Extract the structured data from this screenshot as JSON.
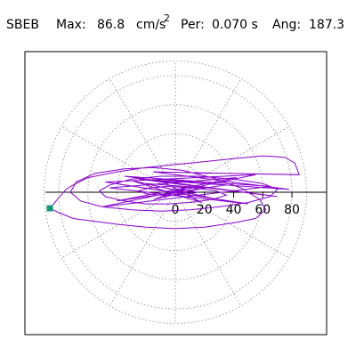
{
  "header": {
    "station": "SBEB",
    "max_label": "Max:",
    "max_value": "86.8",
    "max_unit": "cm/s",
    "max_exponent": "2",
    "per_label": "Per:",
    "per_value": "0.070 s",
    "ang_label": "Ang:",
    "ang_value": "187.3"
  },
  "chart_data": {
    "type": "line",
    "projection": "polar-hodogram",
    "title": "",
    "xlabel": "",
    "ylabel": "",
    "radial_range": [
      0,
      90
    ],
    "rings": [
      20,
      40,
      60,
      80,
      90
    ],
    "spokes_every_deg": 30,
    "radial_tick_labels": [
      "0",
      "20",
      "40",
      "60",
      "80"
    ],
    "grid": true,
    "colors": {
      "trace": "#8800cc",
      "marker": "#119977",
      "grid": "#888888",
      "axis": "#000000"
    },
    "max_point": {
      "x": -86.1,
      "y": -11.0
    },
    "series": [
      {
        "x": [
          0,
          5,
          -8,
          10,
          -15,
          20,
          -20,
          25,
          -30,
          18,
          -12,
          35,
          -40,
          42,
          -45,
          50,
          -48,
          55,
          -50,
          65,
          -35,
          70,
          -25,
          78,
          -15,
          85,
          82,
          75,
          60,
          40,
          20,
          0,
          -20,
          -40,
          -60,
          -70,
          -75,
          -86.1,
          -80,
          -70,
          -55,
          -40,
          -20,
          0,
          20,
          40,
          55,
          62,
          58,
          45,
          25,
          5,
          -15,
          -35,
          -55,
          -68,
          -72,
          -65,
          -50,
          -30,
          -10,
          10,
          30,
          50,
          65,
          70,
          60,
          40,
          15,
          -10,
          -30,
          -45,
          -52,
          -48,
          -35,
          -20,
          -5,
          10,
          25,
          35,
          28,
          12,
          -5,
          -18,
          -25,
          -20,
          -10,
          0,
          10,
          15,
          8,
          0,
          -5,
          3,
          0
        ],
        "y": [
          0,
          2,
          -3,
          4,
          -5,
          3,
          6,
          -4,
          8,
          -7,
          9,
          5,
          -6,
          10,
          3,
          -8,
          7,
          12,
          -10,
          4,
          11,
          -3,
          9,
          2,
          14,
          12,
          20,
          24,
          25,
          23,
          21,
          19,
          17,
          14,
          10,
          5,
          2,
          -11,
          -14,
          -18,
          -20,
          -22,
          -24,
          -25,
          -24,
          -21,
          -18,
          -12,
          -5,
          3,
          10,
          15,
          17,
          16,
          13,
          7,
          0,
          -6,
          -10,
          -12,
          -13,
          -12,
          -10,
          -7,
          -3,
          2,
          6,
          9,
          11,
          11,
          9,
          5,
          1,
          -3,
          -6,
          -8,
          -8,
          -7,
          -5,
          -2,
          1,
          3,
          4,
          3,
          1,
          -1,
          -2,
          -2,
          -1,
          0,
          1,
          1,
          0,
          0,
          0
        ]
      }
    ]
  }
}
